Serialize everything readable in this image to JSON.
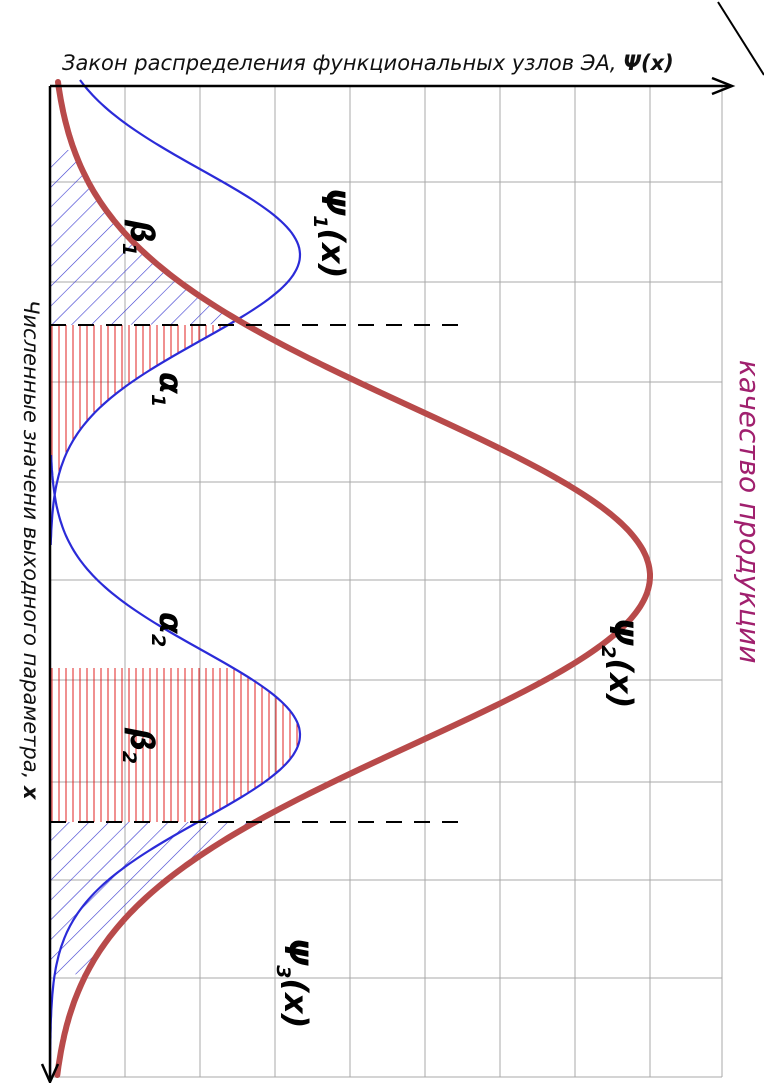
{
  "texts": {
    "y_axis_title_prefix": "Закон распределения функциональных узлов ЭА, ",
    "y_axis_title_symbol": "Ψ(x)",
    "x_axis_title_prefix": "Численные значени выходного параметра, ",
    "x_axis_title_symbol": "x",
    "side_label": "качество продукции",
    "psi1": "Ψ",
    "psi1_sub": "1",
    "psi1_tail": "(x)",
    "psi2": "Ψ",
    "psi2_sub": "2",
    "psi2_tail": "(x)",
    "psi3": "Ψ",
    "psi3_sub": "3",
    "psi3_tail": "(x)",
    "beta1": "β",
    "beta1_sub": "1",
    "alpha1": "α",
    "alpha1_sub": "1",
    "alpha2": "α",
    "alpha2_sub": "2",
    "beta2": "β",
    "beta2_sub": "2"
  },
  "colors": {
    "grid": "#a8a8a8",
    "axis": "#000000",
    "blue_curve": "#2b2bd8",
    "red_curve": "#b84a4a",
    "hatch_blue": "#3a3ad0",
    "hatch_red": "#e02020",
    "dashed": "#000000",
    "side_label": "#a0206e"
  }
}
